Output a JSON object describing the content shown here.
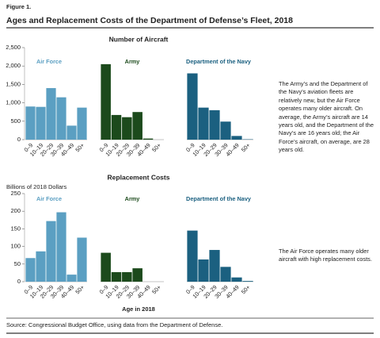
{
  "figure_label": "Figure 1.",
  "title": "Ages and Replacement Costs of the Department of Defense’s Fleet, 2018",
  "source": "Source: Congressional Budget Office, using data from the Department of Defense.",
  "chart_data": [
    {
      "type": "bar",
      "title": "Number of Aircraft",
      "categories": [
        "0–9",
        "10–19",
        "20–29",
        "30–39",
        "40–49",
        "50+"
      ],
      "series": [
        {
          "name": "Air Force",
          "color": "#5b9fc2",
          "values": [
            900,
            890,
            1400,
            1150,
            380,
            870
          ]
        },
        {
          "name": "Army",
          "color": "#1c4a1c",
          "values": [
            2050,
            670,
            610,
            750,
            30,
            0
          ]
        },
        {
          "name": "Department of the Navy",
          "color": "#1b6080",
          "values": [
            1800,
            870,
            800,
            490,
            100,
            10
          ]
        }
      ],
      "ylim": [
        0,
        2500
      ],
      "yticks": [
        0,
        500,
        {
          "value": 1000,
          "label": "1,000"
        },
        {
          "value": 1500,
          "label": "1,500"
        },
        {
          "value": 2000,
          "label": "2,000"
        },
        {
          "value": 2500,
          "label": "2,500"
        }
      ],
      "note": "The Army’s and the Department of the Navy’s aviation fleets are relatively new, but the Air Force operates many older aircraft. On average, the Army’s aircraft are 14 years old, and the Department of the Navy’s are 16 years old; the Air Force’s aircraft, on average, are 28 years old."
    },
    {
      "type": "bar",
      "title": "Replacement Costs",
      "ylabel": "Billions of 2018 Dollars",
      "xlabel": "Age in 2018",
      "categories": [
        "0–9",
        "10–19",
        "20–29",
        "30–39",
        "40–49",
        "50+"
      ],
      "series": [
        {
          "name": "Air Force",
          "color": "#5b9fc2",
          "values": [
            67,
            86,
            172,
            197,
            20,
            125
          ]
        },
        {
          "name": "Army",
          "color": "#1c4a1c",
          "values": [
            82,
            27,
            27,
            38,
            0,
            0
          ]
        },
        {
          "name": "Department of the Navy",
          "color": "#1b6080",
          "values": [
            145,
            63,
            90,
            42,
            12,
            2
          ]
        }
      ],
      "ylim": [
        0,
        250
      ],
      "yticks": [
        0,
        50,
        100,
        150,
        200,
        250
      ],
      "note": "The Air Force operates many older aircraft with high replacement costs."
    }
  ]
}
